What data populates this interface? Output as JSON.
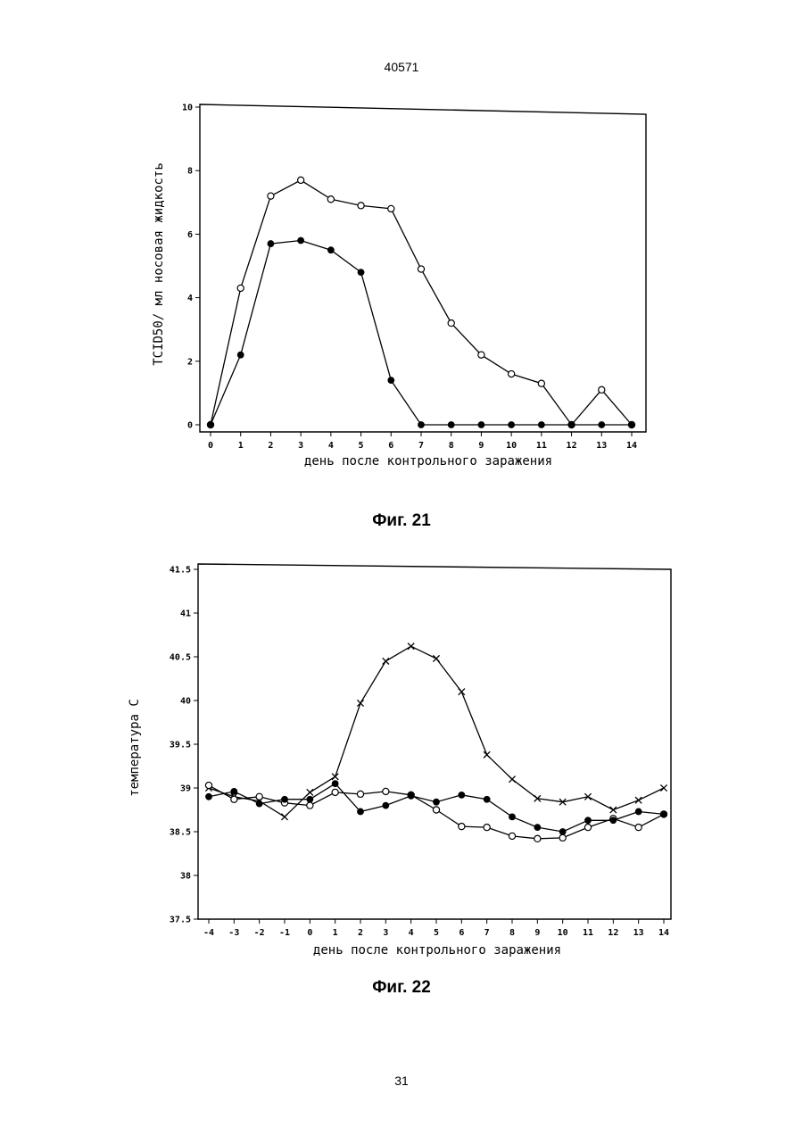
{
  "page": {
    "header_number": "40571",
    "footer_number": "31"
  },
  "chart_data": [
    {
      "type": "line",
      "caption": "Фиг. 21",
      "title": "",
      "xlabel": "день после контрольного заражения",
      "ylabel": "TCID50/ мл носовая жидкость",
      "x": [
        0,
        1,
        2,
        3,
        4,
        5,
        6,
        7,
        8,
        9,
        10,
        11,
        12,
        13,
        14
      ],
      "x_tick_labels": [
        "0",
        "1",
        "2",
        "3",
        "4",
        "5",
        "6",
        "7",
        "8",
        "9",
        "10",
        "11",
        "12",
        "13",
        "14"
      ],
      "y_tick_labels": [
        "0",
        "2",
        "4",
        "6",
        "8",
        "10"
      ],
      "xlim": [
        0,
        14
      ],
      "ylim": [
        0,
        10
      ],
      "grid": false,
      "series": [
        {
          "marker": "open-circle",
          "values": [
            0,
            4.3,
            7.2,
            7.7,
            7.1,
            6.9,
            6.8,
            4.9,
            3.2,
            2.2,
            1.6,
            1.3,
            0,
            1.1,
            0
          ]
        },
        {
          "marker": "filled-circle",
          "values": [
            0,
            2.2,
            5.7,
            5.8,
            5.5,
            4.8,
            1.4,
            0,
            0,
            0,
            0,
            0,
            0,
            0,
            0
          ]
        }
      ]
    },
    {
      "type": "line",
      "caption": "Фиг. 22",
      "title": "",
      "xlabel": "день после контрольного заражения",
      "ylabel": "температура   С",
      "x": [
        -4,
        -3,
        -2,
        -1,
        0,
        1,
        2,
        3,
        4,
        5,
        6,
        7,
        8,
        9,
        10,
        11,
        12,
        13,
        14
      ],
      "x_tick_labels": [
        "-4",
        "-3",
        "-2",
        "-1",
        "0",
        "1",
        "2",
        "3",
        "4",
        "5",
        "6",
        "7",
        "8",
        "9",
        "10",
        "11",
        "12",
        "13",
        "14"
      ],
      "y_tick_labels": [
        "37.5",
        "38",
        "38.5",
        "39",
        "39.5",
        "40",
        "40.5",
        "41",
        "41.5"
      ],
      "xlim": [
        -4,
        14
      ],
      "ylim": [
        37.5,
        41.5
      ],
      "grid": false,
      "series": [
        {
          "marker": "cross",
          "values": [
            39.0,
            38.9,
            38.85,
            38.67,
            38.95,
            39.13,
            39.97,
            40.45,
            40.62,
            40.48,
            40.1,
            39.38,
            39.1,
            38.88,
            38.84,
            38.9,
            38.75,
            38.86,
            39.0
          ]
        },
        {
          "marker": "open-circle",
          "values": [
            39.03,
            38.87,
            38.9,
            38.83,
            38.8,
            38.95,
            38.93,
            38.96,
            38.92,
            38.75,
            38.56,
            38.55,
            38.45,
            38.42,
            38.43,
            38.55,
            38.65,
            38.55,
            38.7
          ]
        },
        {
          "marker": "filled-circle",
          "values": [
            38.9,
            38.96,
            38.82,
            38.87,
            38.87,
            39.05,
            38.73,
            38.8,
            38.91,
            38.84,
            38.92,
            38.87,
            38.67,
            38.55,
            38.5,
            38.63,
            38.63,
            38.73,
            38.7
          ]
        }
      ]
    }
  ]
}
